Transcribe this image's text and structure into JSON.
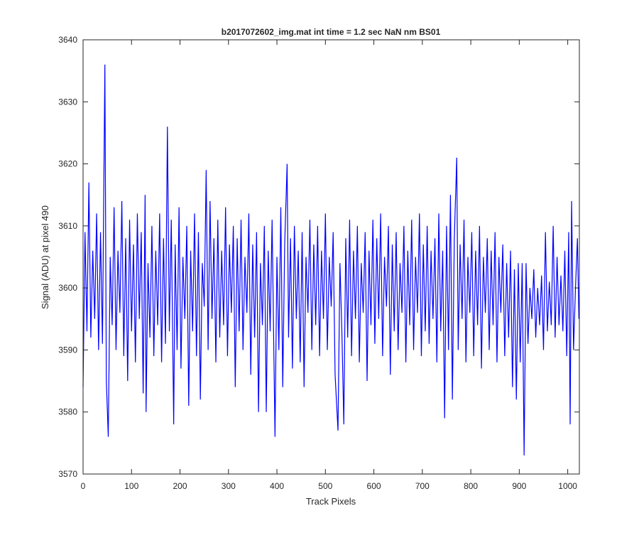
{
  "chart_data": {
    "type": "line",
    "title": "b2017072602_img.mat int time = 1.2 sec  NaN nm BS01",
    "x_label": "Track Pixels",
    "y_label": "Signal (ADU) at pixel 490",
    "xlim": [
      0,
      1024
    ],
    "ylim": [
      3570,
      3640
    ],
    "xticks": [
      0,
      100,
      200,
      300,
      400,
      500,
      600,
      700,
      800,
      900,
      1000
    ],
    "yticks": [
      3570,
      3580,
      3590,
      3600,
      3610,
      3620,
      3630,
      3640
    ],
    "series": [
      {
        "color": "#0000ff",
        "x": [
          0,
          4,
          8,
          12,
          16,
          20,
          24,
          28,
          32,
          36,
          40,
          45,
          48,
          52,
          56,
          60,
          64,
          68,
          72,
          76,
          80,
          84,
          88,
          92,
          96,
          100,
          104,
          108,
          112,
          116,
          120,
          124,
          128,
          130,
          134,
          138,
          142,
          146,
          150,
          154,
          158,
          162,
          166,
          170,
          174,
          178,
          182,
          187,
          190,
          194,
          198,
          202,
          206,
          210,
          214,
          218,
          222,
          226,
          230,
          234,
          238,
          242,
          246,
          250,
          254,
          258,
          262,
          266,
          270,
          274,
          278,
          282,
          286,
          290,
          294,
          298,
          302,
          306,
          310,
          314,
          318,
          322,
          326,
          330,
          334,
          338,
          342,
          346,
          350,
          354,
          358,
          362,
          366,
          370,
          374,
          378,
          382,
          386,
          390,
          396,
          400,
          404,
          408,
          412,
          416,
          421,
          424,
          428,
          432,
          436,
          440,
          444,
          448,
          452,
          456,
          460,
          464,
          468,
          472,
          476,
          480,
          484,
          488,
          492,
          496,
          500,
          504,
          508,
          512,
          516,
          520,
          526,
          530,
          534,
          538,
          542,
          546,
          550,
          554,
          558,
          562,
          566,
          570,
          574,
          578,
          582,
          586,
          590,
          594,
          598,
          602,
          606,
          610,
          614,
          618,
          622,
          626,
          630,
          634,
          638,
          642,
          646,
          650,
          654,
          658,
          662,
          666,
          670,
          674,
          678,
          682,
          686,
          690,
          694,
          698,
          702,
          706,
          710,
          714,
          718,
          722,
          726,
          730,
          734,
          738,
          742,
          746,
          750,
          754,
          758,
          762,
          766,
          771,
          774,
          778,
          782,
          786,
          790,
          794,
          798,
          802,
          806,
          810,
          814,
          818,
          822,
          826,
          830,
          834,
          838,
          842,
          846,
          850,
          854,
          858,
          862,
          866,
          870,
          874,
          878,
          882,
          886,
          890,
          894,
          898,
          902,
          906,
          910,
          914,
          918,
          922,
          926,
          930,
          934,
          938,
          942,
          946,
          950,
          954,
          958,
          962,
          966,
          970,
          974,
          978,
          982,
          986,
          990,
          994,
          998,
          1002,
          1005,
          1008,
          1012,
          1016,
          1020,
          1023
        ],
        "values": [
          3584,
          3609,
          3593,
          3617,
          3592,
          3606,
          3595,
          3612,
          3590,
          3609,
          3591,
          3636,
          3585,
          3576,
          3605,
          3594,
          3613,
          3590,
          3606,
          3596,
          3614,
          3589,
          3608,
          3585,
          3611,
          3593,
          3607,
          3588,
          3612,
          3595,
          3609,
          3583,
          3615,
          3580,
          3604,
          3592,
          3610,
          3589,
          3606,
          3594,
          3612,
          3588,
          3608,
          3591,
          3626,
          3593,
          3611,
          3578,
          3607,
          3590,
          3613,
          3587,
          3605,
          3595,
          3610,
          3581,
          3606,
          3593,
          3612,
          3589,
          3609,
          3582,
          3604,
          3597,
          3619,
          3590,
          3614,
          3595,
          3608,
          3588,
          3611,
          3592,
          3606,
          3594,
          3613,
          3589,
          3607,
          3596,
          3610,
          3584,
          3608,
          3593,
          3611,
          3590,
          3605,
          3596,
          3612,
          3586,
          3607,
          3592,
          3609,
          3580,
          3604,
          3594,
          3610,
          3580,
          3606,
          3593,
          3611,
          3576,
          3605,
          3590,
          3613,
          3584,
          3607,
          3620,
          3592,
          3608,
          3587,
          3610,
          3595,
          3606,
          3588,
          3609,
          3584,
          3605,
          3596,
          3611,
          3590,
          3607,
          3594,
          3610,
          3589,
          3606,
          3595,
          3612,
          3590,
          3605,
          3597,
          3609,
          3586,
          3577,
          3604,
          3593,
          3578,
          3608,
          3592,
          3611,
          3589,
          3606,
          3595,
          3610,
          3588,
          3604,
          3596,
          3609,
          3585,
          3606,
          3594,
          3611,
          3591,
          3608,
          3595,
          3612,
          3589,
          3605,
          3597,
          3610,
          3586,
          3607,
          3593,
          3609,
          3590,
          3604,
          3596,
          3610,
          3588,
          3606,
          3594,
          3611,
          3590,
          3605,
          3596,
          3612,
          3589,
          3607,
          3593,
          3610,
          3591,
          3606,
          3595,
          3608,
          3588,
          3612,
          3593,
          3606,
          3579,
          3610,
          3590,
          3615,
          3582,
          3608,
          3621,
          3590,
          3607,
          3595,
          3611,
          3588,
          3605,
          3596,
          3609,
          3589,
          3606,
          3594,
          3610,
          3587,
          3605,
          3596,
          3608,
          3590,
          3606,
          3594,
          3609,
          3588,
          3605,
          3596,
          3607,
          3589,
          3604,
          3592,
          3606,
          3584,
          3603,
          3582,
          3604,
          3588,
          3604,
          3573,
          3604,
          3591,
          3600,
          3595,
          3603,
          3592,
          3600,
          3594,
          3602,
          3590,
          3609,
          3593,
          3601,
          3594,
          3610,
          3592,
          3605,
          3594,
          3602,
          3593,
          3606,
          3589,
          3609,
          3578,
          3614,
          3590,
          3600,
          3608,
          3595
        ]
      }
    ]
  }
}
